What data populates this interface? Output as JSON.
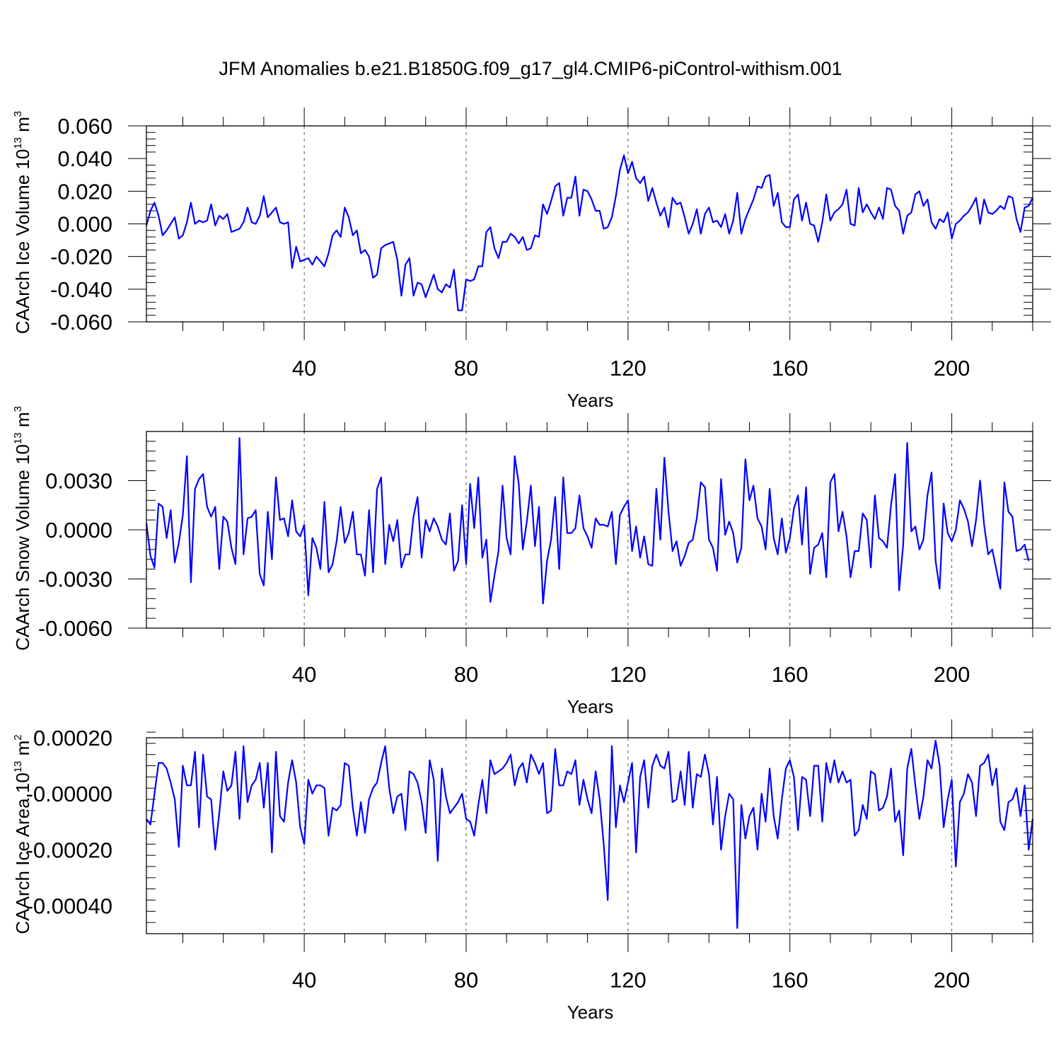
{
  "title": "JFM Anomalies b.e21.B1850G.f09_g17_gl4.CMIP6-piControl-withism.001",
  "line_color": "#0000ff",
  "chart_data": [
    {
      "type": "line",
      "title": "JFM Anomalies b.e21.B1850G.f09_g17_gl4.CMIP6-piControl-withism.001",
      "xlabel": "Years",
      "ylabel": "CAArch Ice Volume 10 13 m 3",
      "ylabel_main": "CAArch Ice Volume 10",
      "ylabel_exp": "13",
      "ylabel_unit": "m",
      "ylabel_unit_exp": "3",
      "xlim": [
        1,
        220
      ],
      "ylim": [
        -0.06,
        0.06
      ],
      "xticks": [
        40,
        80,
        120,
        160,
        200
      ],
      "xtick_labels": [
        "40",
        "80",
        "120",
        "160",
        "200"
      ],
      "yticks": [
        -0.06,
        -0.04,
        -0.02,
        0.0,
        0.02,
        0.04,
        0.06
      ],
      "ytick_labels": [
        "-0.060",
        "-0.040",
        "-0.020",
        "0.000",
        "0.020",
        "0.040",
        "0.060"
      ],
      "grid": "vertical dashed at major x ticks",
      "series": [
        {
          "values": [
            -0.001,
            0.008,
            0.013,
            0.005,
            -0.007,
            -0.004,
            0.0,
            0.004,
            -0.009,
            -0.007,
            0.001,
            0.013,
            0.0,
            0.002,
            0.001,
            0.002,
            0.012,
            -0.001,
            0.005,
            0.003,
            0.006,
            -0.005,
            -0.004,
            -0.003,
            0.001,
            0.01,
            0.001,
            0.0,
            0.005,
            0.017,
            0.004,
            0.007,
            0.01,
            0.001,
            0.0,
            0.001,
            -0.027,
            -0.014,
            -0.023,
            -0.022,
            -0.021,
            -0.025,
            -0.02,
            -0.023,
            -0.026,
            -0.018,
            -0.007,
            -0.004,
            -0.008,
            0.01,
            0.004,
            -0.007,
            -0.004,
            -0.018,
            -0.016,
            -0.02,
            -0.033,
            -0.031,
            -0.015,
            -0.013,
            -0.012,
            -0.011,
            -0.022,
            -0.044,
            -0.025,
            -0.021,
            -0.044,
            -0.036,
            -0.037,
            -0.045,
            -0.038,
            -0.031,
            -0.04,
            -0.042,
            -0.037,
            -0.039,
            -0.028,
            -0.053,
            -0.053,
            -0.034,
            -0.035,
            -0.034,
            -0.026,
            -0.026,
            -0.005,
            -0.002,
            -0.015,
            -0.021,
            -0.011,
            -0.011,
            -0.006,
            -0.008,
            -0.012,
            -0.008,
            -0.016,
            -0.015,
            -0.007,
            -0.008,
            0.012,
            0.006,
            0.014,
            0.023,
            0.025,
            0.005,
            0.016,
            0.016,
            0.029,
            0.005,
            0.021,
            0.02,
            0.015,
            0.008,
            0.008,
            -0.003,
            -0.002,
            0.004,
            0.017,
            0.033,
            0.042,
            0.031,
            0.038,
            0.028,
            0.025,
            0.029,
            0.014,
            0.022,
            0.013,
            0.005,
            0.01,
            -0.002,
            0.016,
            0.012,
            0.013,
            0.004,
            -0.006,
            0.0,
            0.009,
            -0.006,
            0.006,
            0.01,
            0.001,
            0.002,
            -0.002,
            0.006,
            -0.006,
            0.002,
            0.019,
            -0.006,
            0.003,
            0.009,
            0.015,
            0.023,
            0.022,
            0.029,
            0.03,
            0.011,
            0.019,
            0.001,
            -0.002,
            -0.002,
            0.015,
            0.018,
            0.002,
            0.013,
            0.0,
            -0.001,
            -0.011,
            0.001,
            0.018,
            0.002,
            0.007,
            0.009,
            0.012,
            0.021,
            0.0,
            -0.001,
            0.022,
            0.007,
            0.012,
            0.007,
            0.003,
            0.01,
            0.003,
            0.022,
            0.021,
            0.011,
            0.008,
            -0.006,
            0.005,
            0.007,
            0.018,
            0.02,
            0.011,
            0.015,
            0.001,
            -0.003,
            0.003,
            0.001,
            0.007,
            -0.009,
            0.0,
            0.002,
            0.005,
            0.007,
            0.011,
            0.016,
            0.0,
            0.015,
            0.007,
            0.006,
            0.008,
            0.011,
            0.009,
            0.017,
            0.016,
            0.003,
            -0.005,
            0.01,
            0.011,
            0.016
          ]
        }
      ]
    },
    {
      "type": "line",
      "xlabel": "Years",
      "ylabel": "CAArch Snow Volume 10 13 m 3",
      "ylabel_main": "CAArch Snow Volume 10",
      "ylabel_exp": "13",
      "ylabel_unit": "m",
      "ylabel_unit_exp": "3",
      "xlim": [
        1,
        220
      ],
      "ylim": [
        -0.006,
        0.006
      ],
      "xticks": [
        40,
        80,
        120,
        160,
        200
      ],
      "xtick_labels": [
        "40",
        "80",
        "120",
        "160",
        "200"
      ],
      "yticks": [
        -0.006,
        -0.003,
        0.0,
        0.003
      ],
      "ytick_labels": [
        "-0.0060",
        "-0.0030",
        "0.0000",
        "0.0030"
      ],
      "grid": "vertical dashed at major x ticks",
      "series": [
        {
          "values": [
            0.0004,
            -0.0016,
            -0.0023,
            0.0016,
            0.0014,
            -0.0005,
            0.0012,
            -0.002,
            -0.0008,
            0.0009,
            0.0045,
            -0.0032,
            0.0025,
            0.0031,
            0.0034,
            0.0014,
            0.0008,
            0.0014,
            -0.0024,
            0.0008,
            0.0005,
            -0.0011,
            -0.0021,
            0.0056,
            -0.0015,
            0.0007,
            0.0008,
            0.0012,
            -0.0027,
            -0.0034,
            0.0011,
            -0.0018,
            0.0032,
            0.0006,
            0.0007,
            -0.0004,
            0.0018,
            -0.0001,
            -0.0004,
            0.0003,
            -0.004,
            -0.0005,
            -0.0011,
            -0.0024,
            0.0017,
            -0.0026,
            -0.0021,
            -0.0007,
            0.0014,
            -0.0008,
            -0.0002,
            0.0011,
            -0.0015,
            -0.0015,
            -0.0028,
            0.0012,
            -0.0026,
            0.0025,
            0.0032,
            -0.0021,
            0.0003,
            -0.0007,
            0.0006,
            -0.0023,
            -0.0015,
            -0.0015,
            0.0008,
            0.002,
            -0.0017,
            0.0006,
            -0.0001,
            0.0007,
            0.0002,
            -0.0006,
            -0.0009,
            0.001,
            -0.0025,
            -0.0019,
            0.0015,
            -0.0021,
            0.0028,
            0.0001,
            0.0032,
            -0.0017,
            -0.0006,
            -0.0044,
            -0.0028,
            -0.0013,
            0.0027,
            -0.0005,
            -0.0015,
            0.0045,
            0.0028,
            -0.0012,
            0.0005,
            0.0027,
            -0.001,
            0.0014,
            -0.0045,
            -0.0019,
            -0.0006,
            0.002,
            -0.0024,
            0.0032,
            -0.0002,
            -0.0002,
            0.0001,
            0.0021,
            0.0001,
            -0.0004,
            -0.0011,
            0.0007,
            0.0003,
            0.0003,
            0.0002,
            0.0011,
            -0.0021,
            0.0009,
            0.0014,
            0.0018,
            -0.0013,
            0.0002,
            -0.0017,
            -0.0004,
            -0.0021,
            -0.0022,
            0.0025,
            -0.0006,
            0.0044,
            0.0011,
            -0.0013,
            -0.0007,
            -0.0022,
            -0.0016,
            -0.0008,
            -0.0006,
            0.0007,
            0.0029,
            0.0026,
            -0.0006,
            -0.0011,
            -0.0025,
            0.0031,
            -0.0003,
            0.0005,
            -0.0002,
            -0.002,
            -0.0011,
            0.0043,
            0.0018,
            0.0027,
            0.0007,
            0.0002,
            -0.0012,
            0.0025,
            -0.0005,
            -0.0015,
            0.0007,
            -0.0014,
            -0.0005,
            0.0013,
            0.0021,
            -0.0009,
            0.0026,
            -0.0027,
            -0.0011,
            -0.0009,
            -0.0002,
            -0.0029,
            0.0029,
            0.0034,
            -0.0001,
            0.0011,
            -0.0004,
            -0.0029,
            -0.0013,
            -0.0013,
            0.001,
            0.0006,
            -0.0023,
            0.0021,
            -0.0005,
            -0.0007,
            -0.0011,
            0.0015,
            0.0034,
            -0.0037,
            -0.0009,
            0.0053,
            -0.0001,
            0.0002,
            -0.0012,
            -0.0006,
            0.0021,
            0.0035,
            -0.0019,
            -0.0036,
            0.0016,
            -0.0002,
            -0.0007,
            0.0,
            0.0018,
            0.0013,
            0.0005,
            -0.001,
            0.0006,
            0.003,
            0.0003,
            -0.0015,
            -0.0012,
            -0.0024,
            -0.0036,
            0.0029,
            0.0011,
            0.0008,
            -0.0013,
            -0.0012,
            -0.0009,
            -0.0019
          ]
        }
      ]
    },
    {
      "type": "line",
      "xlabel": "Years",
      "ylabel": "CAArch Ice Area 10 13 m 2",
      "ylabel_main": "CAArch Ice Area 10",
      "ylabel_exp": "13",
      "ylabel_unit": "m",
      "ylabel_unit_exp": "2",
      "xlim": [
        1,
        220
      ],
      "ylim": [
        -0.0005,
        0.0002
      ],
      "xticks": [
        40,
        80,
        120,
        160,
        200
      ],
      "xtick_labels": [
        "40",
        "80",
        "120",
        "160",
        "200"
      ],
      "yticks": [
        -0.0004,
        -0.0002,
        0.0,
        0.0002
      ],
      "ytick_labels": [
        "-0.00040",
        "-0.00020",
        "-0.00000",
        "0.00020"
      ],
      "grid": "vertical dashed at major x ticks",
      "series": [
        {
          "values": [
            -9e-05,
            -0.00011,
            0.0,
            0.00011,
            0.00011,
            9e-05,
            4e-05,
            -2e-05,
            -0.00019,
            0.0001,
            3e-05,
            3e-05,
            0.00015,
            -0.00012,
            0.00014,
            -1e-05,
            -2e-05,
            -0.0002,
            -7e-05,
            8e-05,
            1e-05,
            3e-05,
            0.00015,
            -9e-05,
            0.00017,
            -3e-05,
            3e-05,
            5e-05,
            0.00011,
            -5e-05,
            0.00011,
            -0.00021,
            0.00015,
            -8e-05,
            -0.0001,
            4e-05,
            0.00012,
            4e-05,
            -0.00012,
            -0.00018,
            5e-05,
            0.0,
            3e-05,
            3e-05,
            2e-05,
            -0.00015,
            -5e-05,
            -6e-05,
            -4e-05,
            0.00011,
            0.0001,
            -5e-05,
            -0.00015,
            -3e-05,
            -0.00014,
            -2e-05,
            2e-05,
            4e-05,
            0.00011,
            0.00017,
            2e-05,
            -7e-05,
            -1e-05,
            0.0,
            -0.00013,
            8e-05,
            7e-05,
            4e-05,
            -3e-05,
            -0.00014,
            0.00012,
            5e-05,
            -0.00024,
            9e-05,
            -1e-05,
            -7e-05,
            -5e-05,
            -3e-05,
            0.0,
            -9e-05,
            -0.0001,
            -0.00015,
            -4e-05,
            5e-05,
            -7e-05,
            0.00012,
            7e-05,
            8e-05,
            9e-05,
            0.00011,
            0.00014,
            3e-05,
            9e-05,
            0.00011,
            4e-05,
            0.00014,
            0.00011,
            7e-05,
            0.00011,
            -7e-05,
            -6e-05,
            0.00016,
            3e-05,
            3e-05,
            8e-05,
            7e-05,
            0.00012,
            -4e-05,
            5e-05,
            -2e-05,
            -7e-05,
            8e-05,
            -2e-05,
            -0.00018,
            -0.00038,
            0.00017,
            -0.00012,
            3e-05,
            -3e-05,
            4e-05,
            0.00011,
            -0.00021,
            6e-05,
            0.00012,
            -5e-05,
            0.0001,
            0.00014,
            0.0001,
            9e-05,
            0.00015,
            -3e-05,
            -2e-05,
            8e-05,
            -4e-05,
            0.00015,
            -5e-05,
            7e-05,
            6e-05,
            0.00014,
            7e-05,
            -0.00011,
            6e-05,
            -0.0002,
            -8e-05,
            0.0,
            -2e-05,
            -0.00048,
            -4e-05,
            -0.00016,
            -8e-05,
            -5e-05,
            -0.0002,
            0.0,
            -0.0001,
            9e-05,
            -8e-05,
            -0.00016,
            -2e-05,
            9e-05,
            0.00012,
            6e-05,
            -0.00013,
            6e-05,
            5e-05,
            -8e-05,
            0.0001,
            0.0001,
            -0.0001,
            0.00011,
            4e-05,
            0.00012,
            4e-05,
            8e-05,
            4e-05,
            5e-05,
            -0.00015,
            -0.00013,
            -4e-05,
            -9e-05,
            8e-05,
            7e-05,
            -6e-05,
            -5e-05,
            -1e-05,
            9e-05,
            -0.0001,
            -6e-05,
            -0.00022,
            9e-05,
            0.00016,
            3e-05,
            -9e-05,
            -1e-05,
            0.00012,
            9e-05,
            0.00019,
            0.0001,
            -0.00012,
            -2e-05,
            5e-05,
            -0.00026,
            -3e-05,
            0.0,
            7e-05,
            4e-05,
            -8e-05,
            0.0001,
            0.00011,
            0.00014,
            3e-05,
            9e-05,
            -0.0001,
            -0.00013,
            -3e-05,
            -2e-05,
            2e-05,
            -8e-05,
            3e-05,
            -0.0002,
            -9e-05
          ]
        }
      ]
    }
  ]
}
